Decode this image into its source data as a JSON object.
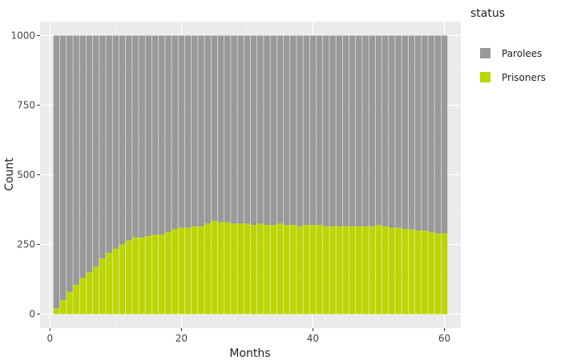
{
  "chart_data": {
    "type": "bar",
    "stacked": true,
    "xlabel": "Months",
    "ylabel": "Count",
    "xlim": [
      -1.5,
      62.5
    ],
    "ylim": [
      -50,
      1050
    ],
    "xticks": [
      0,
      20,
      40,
      60
    ],
    "yticks": [
      0,
      250,
      500,
      750,
      1000
    ],
    "grid": true,
    "legend": {
      "title": "status",
      "position": "right"
    },
    "x": [
      1,
      2,
      3,
      4,
      5,
      6,
      7,
      8,
      9,
      10,
      11,
      12,
      13,
      14,
      15,
      16,
      17,
      18,
      19,
      20,
      21,
      22,
      23,
      24,
      25,
      26,
      27,
      28,
      29,
      30,
      31,
      32,
      33,
      34,
      35,
      36,
      37,
      38,
      39,
      40,
      41,
      42,
      43,
      44,
      45,
      46,
      47,
      48,
      49,
      50,
      51,
      52,
      53,
      54,
      55,
      56,
      57,
      58,
      59,
      60
    ],
    "series": [
      {
        "name": "Prisoners",
        "color": "#bcd600",
        "values": [
          20,
          50,
          80,
          105,
          130,
          150,
          170,
          200,
          220,
          235,
          250,
          265,
          275,
          275,
          280,
          285,
          285,
          295,
          305,
          310,
          310,
          315,
          315,
          325,
          335,
          330,
          330,
          325,
          325,
          325,
          320,
          325,
          320,
          320,
          325,
          320,
          320,
          315,
          320,
          320,
          320,
          315,
          315,
          315,
          315,
          315,
          315,
          315,
          315,
          320,
          315,
          310,
          310,
          305,
          305,
          300,
          300,
          295,
          290,
          290
        ]
      },
      {
        "name": "Parolees",
        "color": "#999999",
        "values": [
          980,
          950,
          920,
          895,
          870,
          850,
          830,
          800,
          780,
          765,
          750,
          735,
          725,
          725,
          720,
          715,
          715,
          705,
          695,
          690,
          690,
          685,
          685,
          675,
          665,
          670,
          670,
          675,
          675,
          675,
          680,
          675,
          680,
          680,
          675,
          680,
          680,
          685,
          680,
          680,
          680,
          685,
          685,
          685,
          685,
          685,
          685,
          685,
          685,
          680,
          685,
          690,
          690,
          695,
          695,
          700,
          700,
          705,
          710,
          710
        ]
      }
    ]
  }
}
